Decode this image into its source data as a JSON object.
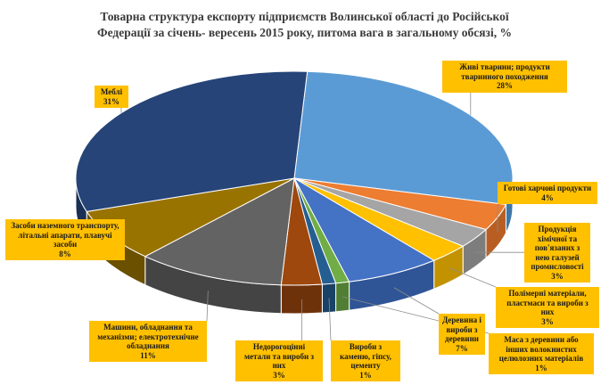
{
  "chart_data": {
    "type": "pie",
    "title_line1": "Товарна структура експорту підприємств Волинської області до Російської",
    "title_line2": "Федерації  за  січень- вересень 2015 року, питома вага в загальному обсязі, %",
    "slices": [
      {
        "name": "Живі тварини; продукти тваринного походження",
        "value": 28,
        "pct": "28%",
        "color": "#5b9bd5",
        "side": "#3f76a8"
      },
      {
        "name": "Готові харчові продукти",
        "value": 4,
        "pct": "4%",
        "color": "#ed7d31",
        "side": "#b85e22"
      },
      {
        "name": "Продукція хімічної та пов'язаних з нею галузей промисловості",
        "value": 3,
        "pct": "3%",
        "color": "#a5a5a5",
        "side": "#7d7d7d"
      },
      {
        "name": "Полімерні матеріали, пластмаси та вироби  з них",
        "value": 3,
        "pct": "3%",
        "color": "#ffc000",
        "side": "#c29200"
      },
      {
        "name": "Деревина і вироби з деревини",
        "value": 7,
        "pct": "7%",
        "color": "#4472c4",
        "side": "#2f5597"
      },
      {
        "name": "Маса з деревини або інших волокнистих целюлозних матеріалів",
        "value": 1,
        "pct": "1%",
        "color": "#70ad47",
        "side": "#507e32"
      },
      {
        "name": "Вироби з каменю, гіпсу, цементу",
        "value": 1,
        "pct": "1%",
        "color": "#255e91",
        "side": "#1a4266"
      },
      {
        "name": "Недорогоцінні метали та вироби з них",
        "value": 3,
        "pct": "3%",
        "color": "#9e480e",
        "side": "#6e320a"
      },
      {
        "name": "Машини, обладнання та механізми; електротехнічне обладнання",
        "value": 11,
        "pct": "11%",
        "color": "#636363",
        "side": "#444444"
      },
      {
        "name": "Засоби наземного транспорту, літальні апарати, плавучі засоби",
        "value": 8,
        "pct": "8%",
        "color": "#997300",
        "side": "#6b5000"
      },
      {
        "name": "Меблі",
        "value": 31,
        "pct": "31%",
        "color": "#264478",
        "side": "#1a2f54"
      }
    ],
    "label_texts": [
      "Живі тварини; продукти тваринного походження",
      "Готові харчові продукти",
      "Продукція хімічної та пов'язаних з нею галузей промисловості",
      "Полімерні матеріали, пластмаси та вироби  з них",
      "Деревина і вироби з деревини",
      "Маса з деревини або інших волокнистих целюлозних матеріалів",
      "Вироби з каменю, гіпсу, цементу",
      "Недорогоцінні метали та вироби з них",
      "Машини, обладнання та механізми; електротехнічне обладнання",
      "Засоби наземного транспорту, літальні апарати, плавучі засоби",
      "Меблі"
    ]
  }
}
